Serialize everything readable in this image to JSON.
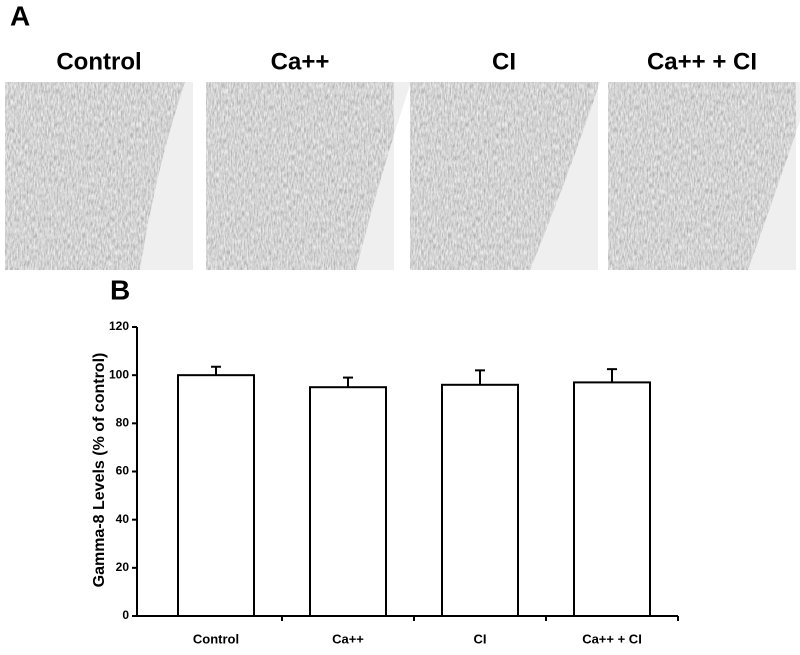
{
  "panel_a": {
    "label": "A",
    "images": [
      {
        "title": "Control"
      },
      {
        "title": "Ca++"
      },
      {
        "title": "CI"
      },
      {
        "title": "Ca++ + CI"
      }
    ]
  },
  "chart_data": {
    "type": "bar",
    "panel_label": "B",
    "y_label": "Gamma-8 Levels (% of control)",
    "categories": [
      "Control",
      "Ca++",
      "CI",
      "Ca++ + CI"
    ],
    "values": [
      100,
      95,
      96,
      97
    ],
    "errors": [
      3.5,
      4,
      6,
      5.5
    ],
    "color": "#ffffff",
    "ylim": [
      0,
      120
    ],
    "yticks": [
      0,
      20,
      40,
      60,
      80,
      100,
      120
    ],
    "grid": false
  }
}
